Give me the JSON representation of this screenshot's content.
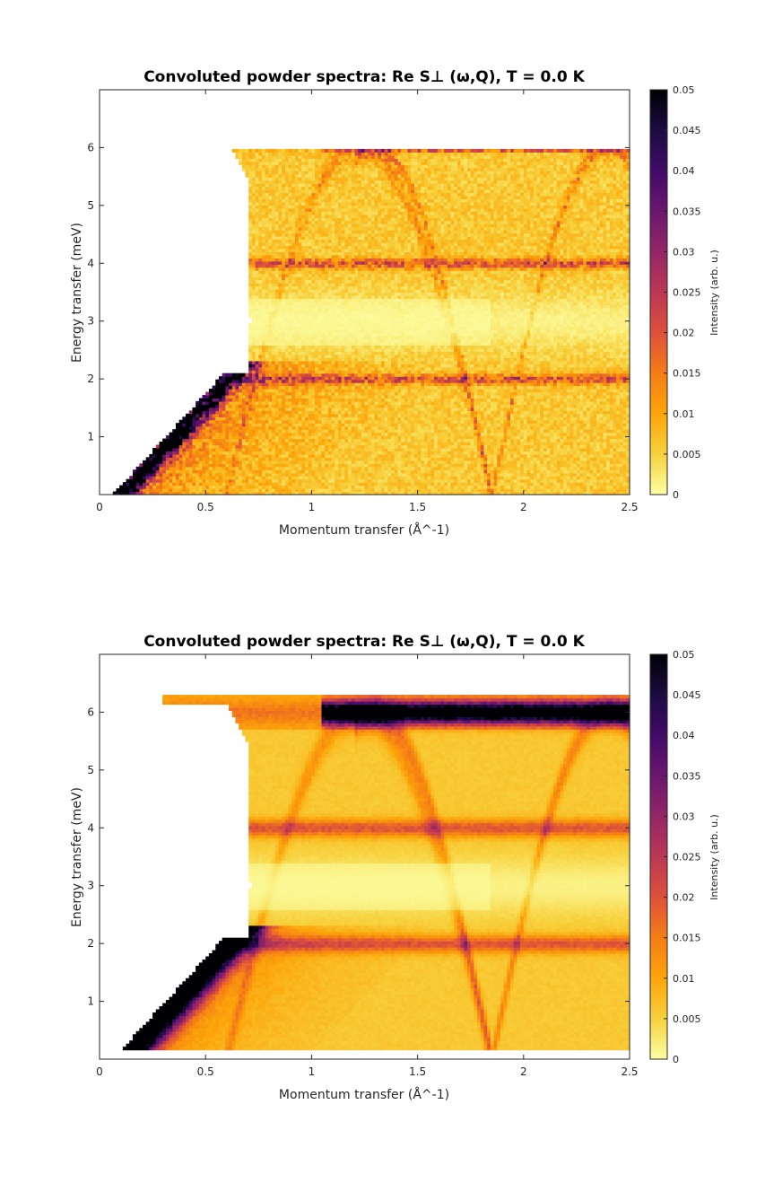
{
  "chart_data": [
    {
      "type": "heatmap",
      "title": "Convoluted powder spectra: Re S⊥ (ω,Q), T =   0.0 K",
      "xlabel": "Momentum transfer (Å^-1)",
      "ylabel": "Energy transfer (meV)",
      "colorbar_label": "Intensity (arb. u.)",
      "colormap": "inferno (reversed)",
      "xlim": [
        0,
        2.5
      ],
      "ylim": [
        0,
        7
      ],
      "clim": [
        0,
        0.05
      ],
      "x_ticks": [
        0,
        0.5,
        1,
        1.5,
        2,
        2.5
      ],
      "x_tick_labels": [
        "0",
        "0.5",
        "1",
        "1.5",
        "2",
        "2.5"
      ],
      "y_ticks": [
        1,
        2,
        3,
        4,
        5,
        6
      ],
      "y_tick_labels": [
        "1",
        "2",
        "3",
        "4",
        "5",
        "6"
      ],
      "cb_ticks": [
        0,
        0.005,
        0.01,
        0.015,
        0.02,
        0.025,
        0.03,
        0.035,
        0.04,
        0.045,
        0.05
      ],
      "cb_tick_labels": [
        "0",
        "0.005",
        "0.01",
        "0.015",
        "0.02",
        "0.025",
        "0.03",
        "0.035",
        "0.04",
        "0.045",
        "0.05"
      ],
      "grid": false,
      "emax_meV": 6.0,
      "smoothing": "noisy",
      "features": {
        "acoustic_branch": "intense edge rising from E=0 at Q≈0.05 to E≈2 at Q≈0.6",
        "flat_bands_meV": [
          2.0,
          4.0,
          6.0
        ],
        "low_intensity_band_meV": 3.0,
        "dispersive_arcs": "arcs peaking near 6 meV at Q≈1.3 and dipping to 0 at Q≈1.85"
      }
    },
    {
      "type": "heatmap",
      "title": "Convoluted powder spectra: Re S⊥ (ω,Q), T =   0.0 K",
      "xlabel": "Momentum transfer (Å^-1)",
      "ylabel": "Energy transfer (meV)",
      "colorbar_label": "Intensity (arb. u.)",
      "colormap": "inferno (reversed)",
      "xlim": [
        0,
        2.5
      ],
      "ylim": [
        0,
        7
      ],
      "clim": [
        0,
        0.05
      ],
      "x_ticks": [
        0,
        0.5,
        1,
        1.5,
        2,
        2.5
      ],
      "x_tick_labels": [
        "0",
        "0.5",
        "1",
        "1.5",
        "2",
        "2.5"
      ],
      "y_ticks": [
        1,
        2,
        3,
        4,
        5,
        6
      ],
      "y_tick_labels": [
        "1",
        "2",
        "3",
        "4",
        "5",
        "6"
      ],
      "cb_ticks": [
        0,
        0.005,
        0.01,
        0.015,
        0.02,
        0.025,
        0.03,
        0.035,
        0.04,
        0.045,
        0.05
      ],
      "cb_tick_labels": [
        "0",
        "0.005",
        "0.01",
        "0.015",
        "0.02",
        "0.025",
        "0.03",
        "0.035",
        "0.04",
        "0.045",
        "0.05"
      ],
      "grid": false,
      "emax_meV": 6.3,
      "smoothing": "smooth",
      "features": {
        "acoustic_branch": "intense edge rising from E=0.2 at Q≈0.05 to E≈2 at Q≈0.6",
        "flat_bands_meV": [
          2.0,
          4.0,
          6.0
        ],
        "low_intensity_band_meV": 3.0,
        "dispersive_arcs": "arcs peaking near 6 meV at Q≈1.3 and dipping to 0 at Q≈1.85"
      }
    }
  ]
}
